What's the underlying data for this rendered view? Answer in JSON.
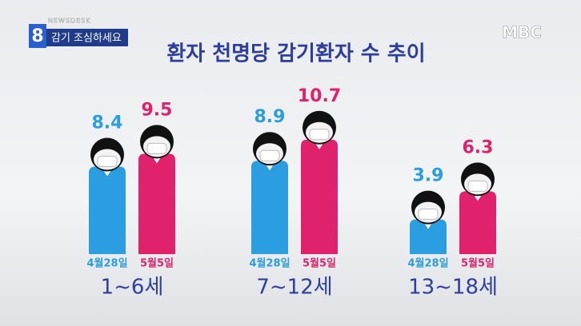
{
  "chart_data": {
    "type": "bar",
    "title": "환자 천명당 감기환자 수 추이",
    "program": "NEWSDESK",
    "channel_number": "8",
    "caption": "감기 조심하세요",
    "logo": "MBC",
    "categories": [
      "1~6세",
      "7~12세",
      "13~18세"
    ],
    "series": [
      {
        "name": "4월28일",
        "color": "#2a9ee0",
        "values": [
          8.4,
          8.9,
          3.9
        ]
      },
      {
        "name": "5월5일",
        "color": "#e0226c",
        "values": [
          9.5,
          10.7,
          6.3
        ]
      }
    ],
    "ylim": [
      -1.5,
      11.5
    ]
  }
}
